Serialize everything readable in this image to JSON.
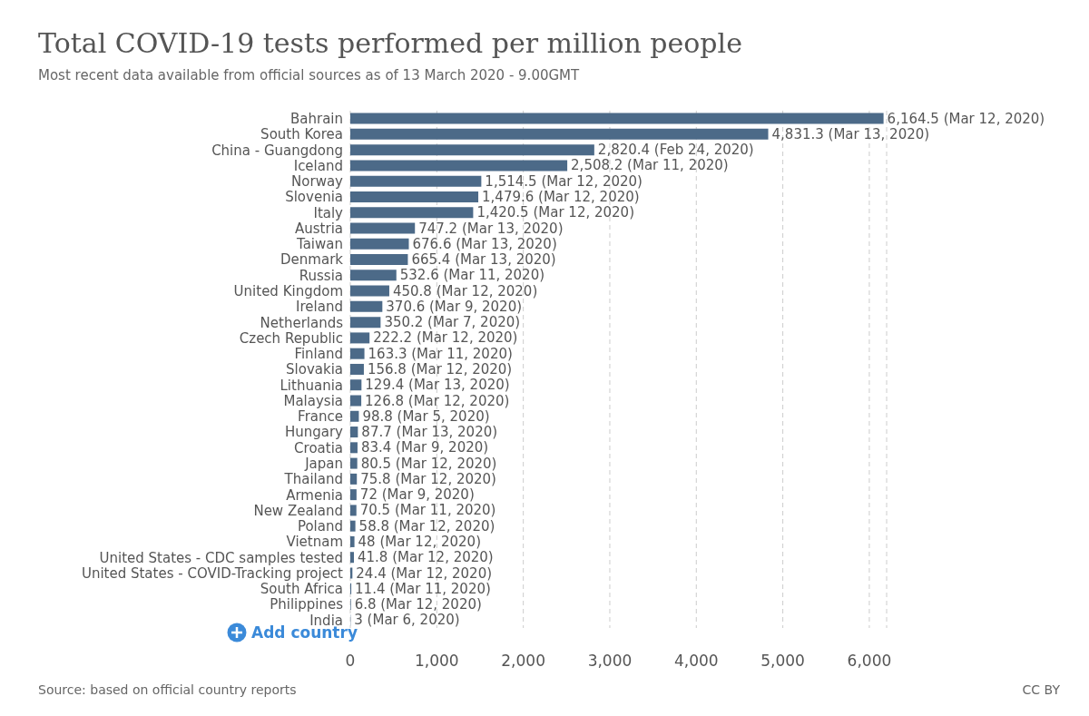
{
  "chart_data": {
    "type": "bar",
    "orientation": "horizontal",
    "title": "Total COVID-19 tests performed per million people",
    "subtitle": "Most recent data available from official sources as of 13 March 2020 - 9.00GMT",
    "categories": [
      "Bahrain",
      "South Korea",
      "China - Guangdong",
      "Iceland",
      "Norway",
      "Slovenia",
      "Italy",
      "Austria",
      "Taiwan",
      "Denmark",
      "Russia",
      "United Kingdom",
      "Ireland",
      "Netherlands",
      "Czech Republic",
      "Finland",
      "Slovakia",
      "Lithuania",
      "Malaysia",
      "France",
      "Hungary",
      "Croatia",
      "Japan",
      "Thailand",
      "Armenia",
      "New Zealand",
      "Poland",
      "Vietnam",
      "United States - CDC samples tested",
      "United States - COVID-Tracking project",
      "South Africa",
      "Philippines",
      "India"
    ],
    "values": [
      6164.5,
      4831.3,
      2820.4,
      2508.2,
      1514.5,
      1479.6,
      1420.5,
      747.2,
      676.6,
      665.4,
      532.6,
      450.8,
      370.6,
      350.2,
      222.2,
      163.3,
      156.8,
      129.4,
      126.8,
      98.8,
      87.7,
      83.4,
      80.5,
      75.8,
      72,
      70.5,
      58.8,
      48,
      41.8,
      24.4,
      11.4,
      6.8,
      3
    ],
    "value_labels": [
      "6,164.5 (Mar 12, 2020)",
      "4,831.3 (Mar 13, 2020)",
      "2,820.4 (Feb 24, 2020)",
      "2,508.2 (Mar 11, 2020)",
      "1,514.5 (Mar 12, 2020)",
      "1,479.6 (Mar 12, 2020)",
      "1,420.5 (Mar 12, 2020)",
      "747.2 (Mar 13, 2020)",
      "676.6 (Mar 13, 2020)",
      "665.4 (Mar 13, 2020)",
      "532.6 (Mar 11, 2020)",
      "450.8 (Mar 12, 2020)",
      "370.6 (Mar 9, 2020)",
      "350.2 (Mar 7, 2020)",
      "222.2 (Mar 12, 2020)",
      "163.3 (Mar 11, 2020)",
      "156.8 (Mar 12, 2020)",
      "129.4 (Mar 13, 2020)",
      "126.8 (Mar 12, 2020)",
      "98.8 (Mar 5, 2020)",
      "87.7 (Mar 13, 2020)",
      "83.4 (Mar 9, 2020)",
      "80.5 (Mar 12, 2020)",
      "75.8 (Mar 12, 2020)",
      "72 (Mar 9, 2020)",
      "70.5 (Mar 11, 2020)",
      "58.8 (Mar 12, 2020)",
      "48 (Mar 12, 2020)",
      "41.8 (Mar 12, 2020)",
      "24.4 (Mar 12, 2020)",
      "11.4 (Mar 11, 2020)",
      "6.8 (Mar 12, 2020)",
      "3 (Mar 6, 2020)"
    ],
    "color": "#4c6a88",
    "xlim": [
      0,
      6200
    ],
    "xticks": [
      0,
      {
        "value": 1000,
        "label": "1,000"
      },
      {
        "value": 2000,
        "label": "2,000"
      },
      {
        "value": 3000,
        "label": "3,000"
      },
      {
        "value": 4000,
        "label": "4,000"
      },
      {
        "value": 5000,
        "label": "5,000"
      },
      {
        "value": 6000,
        "label": "6,000"
      }
    ],
    "grid": "x",
    "annotations": [
      "Source: based on official country reports",
      "CC BY",
      "Add country"
    ]
  }
}
